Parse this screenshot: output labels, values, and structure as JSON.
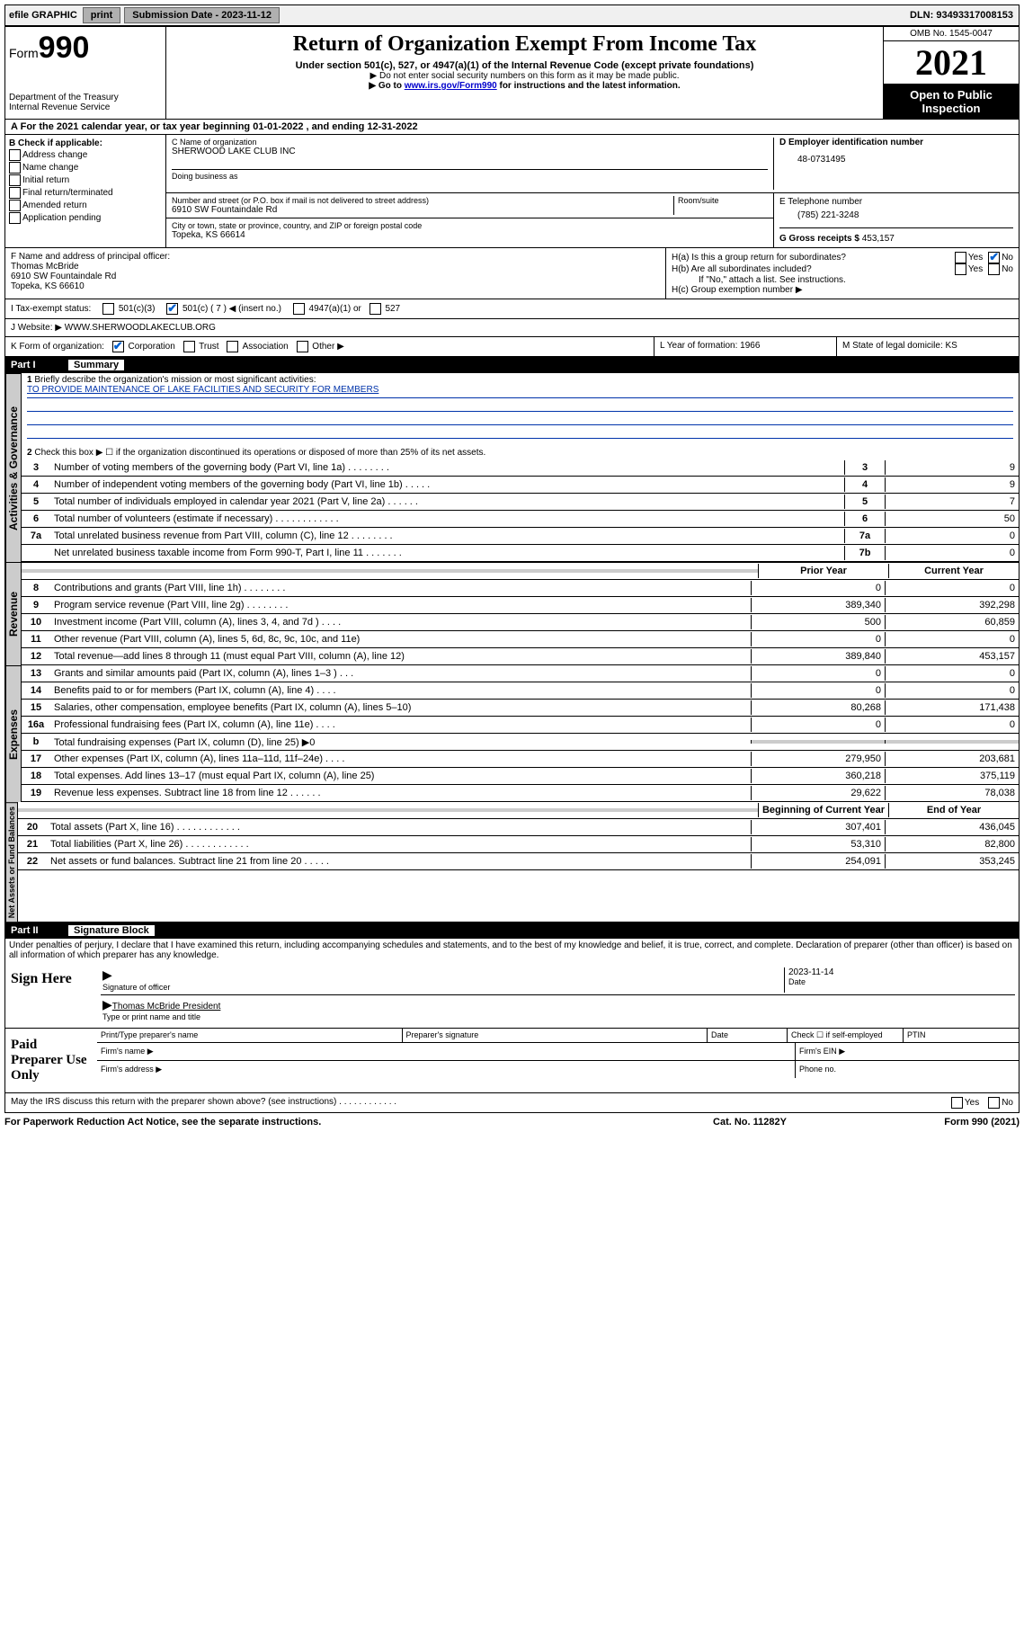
{
  "top": {
    "efile": "efile GRAPHIC",
    "print": "print",
    "submission_label": "Submission Date - ",
    "submission_date": "2023-11-12",
    "dln_label": "DLN: ",
    "dln": "93493317008153"
  },
  "header": {
    "form_pre": "Form",
    "form_num": "990",
    "dept": "Department of the Treasury",
    "irs": "Internal Revenue Service",
    "title": "Return of Organization Exempt From Income Tax",
    "sub1": "Under section 501(c), 527, or 4947(a)(1) of the Internal Revenue Code (except private foundations)",
    "sub2": "▶ Do not enter social security numbers on this form as it may be made public.",
    "sub3_pre": "▶ Go to ",
    "sub3_link": "www.irs.gov/Form990",
    "sub3_post": " for instructions and the latest information.",
    "omb_label": "OMB No. 1545-0047",
    "year": "2021",
    "open1": "Open to Public",
    "open2": "Inspection"
  },
  "a": {
    "text": "For the 2021 calendar year, or tax year beginning 01-01-2022   , and ending 12-31-2022"
  },
  "b": {
    "title": "B Check if applicable:",
    "opts": [
      "Address change",
      "Name change",
      "Initial return",
      "Final return/terminated",
      "Amended return",
      "Application pending"
    ]
  },
  "c": {
    "name_label": "C Name of organization",
    "name": "SHERWOOD LAKE CLUB INC",
    "dba_label": "Doing business as",
    "street_label": "Number and street (or P.O. box if mail is not delivered to street address)",
    "room_label": "Room/suite",
    "street": "6910 SW Fountaindale Rd",
    "city_label": "City or town, state or province, country, and ZIP or foreign postal code",
    "city": "Topeka, KS  66614"
  },
  "d": {
    "label": "D Employer identification number",
    "value": "48-0731495"
  },
  "e": {
    "label": "E Telephone number",
    "value": "(785) 221-3248"
  },
  "g": {
    "label": "G Gross receipts $",
    "value": "453,157"
  },
  "f": {
    "label": "F  Name and address of principal officer:",
    "name": "Thomas McBride",
    "addr1": "6910 SW Fountaindale Rd",
    "addr2": "Topeka, KS  66610"
  },
  "h": {
    "a": "H(a)  Is this a group return for subordinates?",
    "b": "H(b)  Are all subordinates included?",
    "b_note": "If \"No,\" attach a list. See instructions.",
    "c": "H(c)  Group exemption number ▶",
    "yes": "Yes",
    "no": "No"
  },
  "i": {
    "label": "I   Tax-exempt status:",
    "o1": "501(c)(3)",
    "o2": "501(c) ( 7 ) ◀ (insert no.)",
    "o3": "4947(a)(1) or",
    "o4": "527"
  },
  "j": {
    "label": "J   Website: ▶",
    "value": " WWW.SHERWOODLAKECLUB.ORG"
  },
  "k": {
    "label": "K Form of organization:",
    "opts": [
      "Corporation",
      "Trust",
      "Association",
      "Other ▶"
    ]
  },
  "l": {
    "label": "L Year of formation: ",
    "value": "1966"
  },
  "m": {
    "label": "M State of legal domicile: ",
    "value": "KS"
  },
  "part1": {
    "num": "Part I",
    "title": "Summary"
  },
  "summary": {
    "q1_label": "Briefly describe the organization's mission or most significant activities:",
    "q1_text": "TO PROVIDE MAINTENANCE OF LAKE FACILITIES AND SECURITY FOR MEMBERS",
    "q2": "Check this box ▶ ☐  if the organization discontinued its operations or disposed of more than 25% of its net assets.",
    "rows_ag": [
      {
        "n": "3",
        "d": "Number of voting members of the governing body (Part VI, line 1a)   .    .    .    .    .    .    .    .",
        "bn": "3",
        "v": "9"
      },
      {
        "n": "4",
        "d": "Number of independent voting members of the governing body (Part VI, line 1b)   .    .    .    .    .",
        "bn": "4",
        "v": "9"
      },
      {
        "n": "5",
        "d": "Total number of individuals employed in calendar year 2021 (Part V, line 2a)   .    .    .    .    .    .",
        "bn": "5",
        "v": "7"
      },
      {
        "n": "6",
        "d": "Total number of volunteers (estimate if necessary)   .    .    .    .    .    .    .    .    .    .    .    .",
        "bn": "6",
        "v": "50"
      },
      {
        "n": "7a",
        "d": "Total unrelated business revenue from Part VIII, column (C), line 12   .    .    .    .    .    .    .    .",
        "bn": "7a",
        "v": "0"
      },
      {
        "n": "",
        "d": "Net unrelated business taxable income from Form 990-T, Part I, line 11   .    .    .    .    .    .    .",
        "bn": "7b",
        "v": "0"
      }
    ],
    "col_prior": "Prior Year",
    "col_current": "Current Year",
    "rev": [
      {
        "n": "8",
        "d": "Contributions and grants (Part VIII, line 1h)   .    .    .    .    .    .    .    .",
        "p": "0",
        "c": "0"
      },
      {
        "n": "9",
        "d": "Program service revenue (Part VIII, line 2g)   .    .    .    .    .    .    .    .",
        "p": "389,340",
        "c": "392,298"
      },
      {
        "n": "10",
        "d": "Investment income (Part VIII, column (A), lines 3, 4, and 7d )   .    .    .    .",
        "p": "500",
        "c": "60,859"
      },
      {
        "n": "11",
        "d": "Other revenue (Part VIII, column (A), lines 5, 6d, 8c, 9c, 10c, and 11e)",
        "p": "0",
        "c": "0"
      },
      {
        "n": "12",
        "d": "Total revenue—add lines 8 through 11 (must equal Part VIII, column (A), line 12)",
        "p": "389,840",
        "c": "453,157"
      }
    ],
    "exp": [
      {
        "n": "13",
        "d": "Grants and similar amounts paid (Part IX, column (A), lines 1–3 )   .    .    .",
        "p": "0",
        "c": "0"
      },
      {
        "n": "14",
        "d": "Benefits paid to or for members (Part IX, column (A), line 4)   .    .    .    .",
        "p": "0",
        "c": "0"
      },
      {
        "n": "15",
        "d": "Salaries, other compensation, employee benefits (Part IX, column (A), lines 5–10)",
        "p": "80,268",
        "c": "171,438"
      },
      {
        "n": "16a",
        "d": "Professional fundraising fees (Part IX, column (A), line 11e)   .    .    .    .",
        "p": "0",
        "c": "0"
      },
      {
        "n": "b",
        "d": "Total fundraising expenses (Part IX, column (D), line 25) ▶0",
        "p": "",
        "c": "",
        "shade": true
      },
      {
        "n": "17",
        "d": "Other expenses (Part IX, column (A), lines 11a–11d, 11f–24e)   .    .    .    .",
        "p": "279,950",
        "c": "203,681"
      },
      {
        "n": "18",
        "d": "Total expenses. Add lines 13–17 (must equal Part IX, column (A), line 25)",
        "p": "360,218",
        "c": "375,119"
      },
      {
        "n": "19",
        "d": "Revenue less expenses. Subtract line 18 from line 12   .    .    .    .    .    .",
        "p": "29,622",
        "c": "78,038"
      }
    ],
    "col_boy": "Beginning of Current Year",
    "col_eoy": "End of Year",
    "na": [
      {
        "n": "20",
        "d": "Total assets (Part X, line 16)   .    .    .    .    .    .    .    .    .    .    .    .",
        "p": "307,401",
        "c": "436,045"
      },
      {
        "n": "21",
        "d": "Total liabilities (Part X, line 26)   .    .    .    .    .    .    .    .    .    .    .    .",
        "p": "53,310",
        "c": "82,800"
      },
      {
        "n": "22",
        "d": "Net assets or fund balances. Subtract line 21 from line 20   .    .    .    .    .",
        "p": "254,091",
        "c": "353,245"
      }
    ]
  },
  "part2": {
    "num": "Part II",
    "title": "Signature Block"
  },
  "sig": {
    "decl": "Under penalties of perjury, I declare that I have examined this return, including accompanying schedules and statements, and to the best of my knowledge and belief, it is true, correct, and complete. Declaration of preparer (other than officer) is based on all information of which preparer has any knowledge.",
    "sign_here": "Sign Here",
    "sig_officer": "Signature of officer",
    "date_label": "Date",
    "date": "2023-11-14",
    "name_title": "Thomas McBride  President",
    "name_title_label": "Type or print name and title",
    "paid": "Paid Preparer Use Only",
    "pt_name": "Print/Type preparer's name",
    "pt_sig": "Preparer's signature",
    "pt_date": "Date",
    "pt_check": "Check ☐ if self-employed",
    "pt_ptin": "PTIN",
    "firm_name": "Firm's name   ▶",
    "firm_ein": "Firm's EIN ▶",
    "firm_addr": "Firm's address ▶",
    "firm_phone": "Phone no.",
    "may": "May the IRS discuss this return with the preparer shown above? (see instructions)   .    .    .    .    .    .    .    .    .    .    .    ."
  },
  "footer": {
    "f1": "For Paperwork Reduction Act Notice, see the separate instructions.",
    "f2": "Cat. No. 11282Y",
    "f3": "Form 990 (2021)"
  },
  "tabs": {
    "ag": "Activities & Governance",
    "rev": "Revenue",
    "exp": "Expenses",
    "na": "Net Assets or Fund Balances"
  }
}
